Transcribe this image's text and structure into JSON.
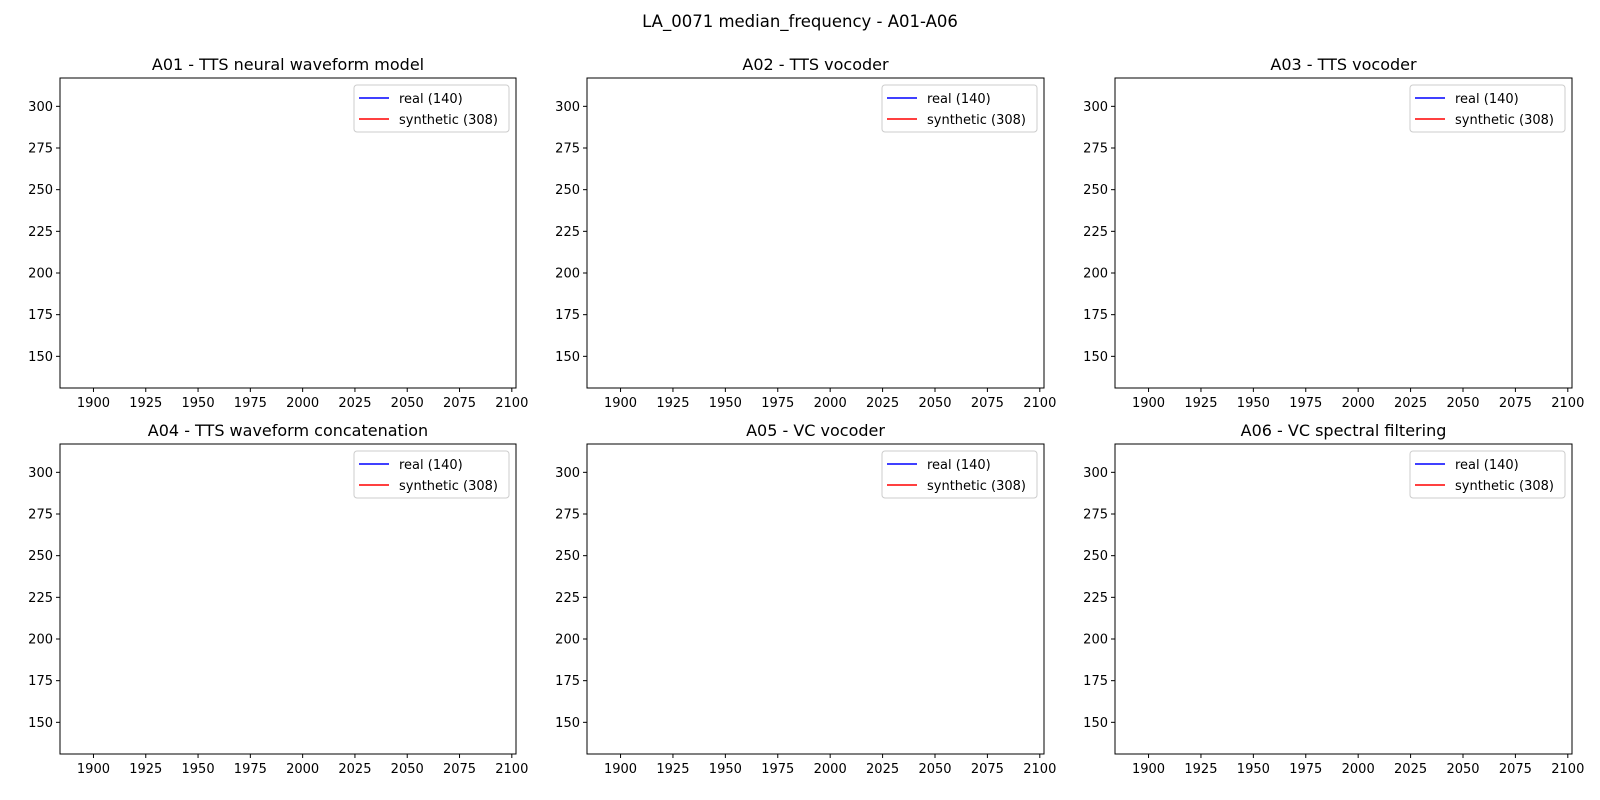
{
  "figure": {
    "title": "LA_0071 median_frequency - A01-A06"
  },
  "colors": {
    "real": "#0000ff",
    "synthetic": "#ff0000",
    "axes": "#000000",
    "background": "#ffffff"
  },
  "chart_data": [
    {
      "type": "line",
      "title": "A01 - TTS neural waveform model",
      "xlabel": "",
      "ylabel": "",
      "xlim": [
        1884,
        2102
      ],
      "ylim": [
        131,
        317
      ],
      "xticks": [
        1900,
        1925,
        1950,
        1975,
        2000,
        2025,
        2050,
        2075,
        2100
      ],
      "yticks": [
        150,
        175,
        200,
        225,
        250,
        275,
        300
      ],
      "grid": false,
      "legend_position": "upper right",
      "series": [
        {
          "name": "real (140)",
          "color": "#0000ff",
          "x": [],
          "y": []
        },
        {
          "name": "synthetic (308)",
          "color": "#ff0000",
          "x": [],
          "y": []
        }
      ]
    },
    {
      "type": "line",
      "title": "A02 - TTS vocoder",
      "xlabel": "",
      "ylabel": "",
      "xlim": [
        1884,
        2102
      ],
      "ylim": [
        131,
        317
      ],
      "xticks": [
        1900,
        1925,
        1950,
        1975,
        2000,
        2025,
        2050,
        2075,
        2100
      ],
      "yticks": [
        150,
        175,
        200,
        225,
        250,
        275,
        300
      ],
      "grid": false,
      "legend_position": "upper right",
      "series": [
        {
          "name": "real (140)",
          "color": "#0000ff",
          "x": [],
          "y": []
        },
        {
          "name": "synthetic (308)",
          "color": "#ff0000",
          "x": [],
          "y": []
        }
      ]
    },
    {
      "type": "line",
      "title": "A03 - TTS vocoder",
      "xlabel": "",
      "ylabel": "",
      "xlim": [
        1884,
        2102
      ],
      "ylim": [
        131,
        317
      ],
      "xticks": [
        1900,
        1925,
        1950,
        1975,
        2000,
        2025,
        2050,
        2075,
        2100
      ],
      "yticks": [
        150,
        175,
        200,
        225,
        250,
        275,
        300
      ],
      "grid": false,
      "legend_position": "upper right",
      "series": [
        {
          "name": "real (140)",
          "color": "#0000ff",
          "x": [],
          "y": []
        },
        {
          "name": "synthetic (308)",
          "color": "#ff0000",
          "x": [],
          "y": []
        }
      ]
    },
    {
      "type": "line",
      "title": "A04 - TTS waveform concatenation",
      "xlabel": "",
      "ylabel": "",
      "xlim": [
        1884,
        2102
      ],
      "ylim": [
        131,
        317
      ],
      "xticks": [
        1900,
        1925,
        1950,
        1975,
        2000,
        2025,
        2050,
        2075,
        2100
      ],
      "yticks": [
        150,
        175,
        200,
        225,
        250,
        275,
        300
      ],
      "grid": false,
      "legend_position": "upper right",
      "series": [
        {
          "name": "real (140)",
          "color": "#0000ff",
          "x": [],
          "y": []
        },
        {
          "name": "synthetic (308)",
          "color": "#ff0000",
          "x": [],
          "y": []
        }
      ]
    },
    {
      "type": "line",
      "title": "A05 - VC vocoder",
      "xlabel": "",
      "ylabel": "",
      "xlim": [
        1884,
        2102
      ],
      "ylim": [
        131,
        317
      ],
      "xticks": [
        1900,
        1925,
        1950,
        1975,
        2000,
        2025,
        2050,
        2075,
        2100
      ],
      "yticks": [
        150,
        175,
        200,
        225,
        250,
        275,
        300
      ],
      "grid": false,
      "legend_position": "upper right",
      "series": [
        {
          "name": "real (140)",
          "color": "#0000ff",
          "x": [],
          "y": []
        },
        {
          "name": "synthetic (308)",
          "color": "#ff0000",
          "x": [],
          "y": []
        }
      ]
    },
    {
      "type": "line",
      "title": "A06 - VC spectral filtering",
      "xlabel": "",
      "ylabel": "",
      "xlim": [
        1884,
        2102
      ],
      "ylim": [
        131,
        317
      ],
      "xticks": [
        1900,
        1925,
        1950,
        1975,
        2000,
        2025,
        2050,
        2075,
        2100
      ],
      "yticks": [
        150,
        175,
        200,
        225,
        250,
        275,
        300
      ],
      "grid": false,
      "legend_position": "upper right",
      "series": [
        {
          "name": "real (140)",
          "color": "#0000ff",
          "x": [],
          "y": []
        },
        {
          "name": "synthetic (308)",
          "color": "#ff0000",
          "x": [],
          "y": []
        }
      ]
    }
  ]
}
